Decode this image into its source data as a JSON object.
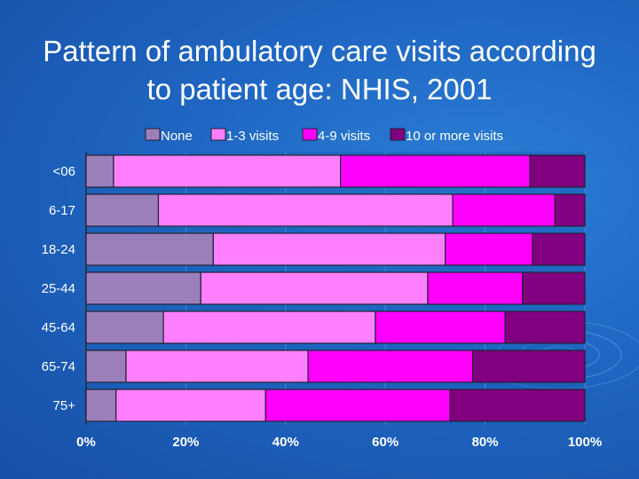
{
  "slide": {
    "title": "Pattern of ambulatory care visits according\nto patient age: NHIS, 2001"
  },
  "colors": {
    "background": "#1f66c2",
    "plot_area": "#1a5fb8",
    "gridline": "#4a86d6",
    "series": [
      "#9b7fba",
      "#ff80ff",
      "#ff00ff",
      "#800080"
    ]
  },
  "chart_data": {
    "type": "bar",
    "orientation": "horizontal",
    "stacked": "percent",
    "title": "Pattern of ambulatory care visits according to patient age: NHIS, 2001",
    "categories": [
      "<06",
      "6-17",
      "18-24",
      "25-44",
      "45-64",
      "65-74",
      "75+"
    ],
    "series": [
      {
        "name": "None",
        "values": [
          5.5,
          14.5,
          25.5,
          23,
          15.5,
          8,
          6
        ]
      },
      {
        "name": "1-3 visits",
        "values": [
          45.5,
          59,
          46.5,
          45.5,
          42.5,
          36.5,
          30
        ]
      },
      {
        "name": "4-9 visits",
        "values": [
          38,
          20.5,
          17.5,
          19,
          26,
          33,
          37
        ]
      },
      {
        "name": "10 or more visits",
        "values": [
          11,
          6,
          10.5,
          12.5,
          16,
          22.5,
          27
        ]
      }
    ],
    "xlim": [
      0,
      100
    ],
    "x_ticks": [
      "0%",
      "20%",
      "40%",
      "60%",
      "80%",
      "100%"
    ],
    "grid": true,
    "legend_position": "top"
  }
}
